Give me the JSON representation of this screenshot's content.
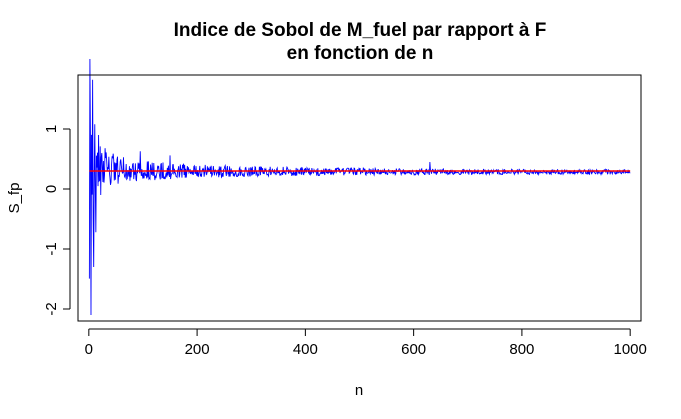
{
  "chart_data": {
    "type": "line",
    "title": [
      "Indice de Sobol de M_fuel par rapport à F",
      "en fonction de n"
    ],
    "xlabel": "n",
    "ylabel": "S_fp",
    "xlim": [
      -20,
      1020
    ],
    "ylim": [
      -2.2,
      1.9
    ],
    "x_ticks": [
      0,
      200,
      400,
      600,
      800,
      1000
    ],
    "y_ticks": [
      -2,
      -1,
      0,
      1
    ],
    "grid": false,
    "legend": "none",
    "series": [
      {
        "color": "#0000ff",
        "envelope": {
          "n": [
            1,
            3,
            5,
            7,
            8,
            10,
            15,
            20,
            30,
            50,
            75,
            100,
            150,
            200,
            300,
            400,
            500,
            650,
            800,
            1000
          ],
          "half_width": [
            2.4,
            2.0,
            1.6,
            1.5,
            1.0,
            0.75,
            0.6,
            0.45,
            0.34,
            0.26,
            0.2,
            0.17,
            0.14,
            0.11,
            0.085,
            0.07,
            0.06,
            0.05,
            0.045,
            0.04
          ]
        },
        "center": 0.28,
        "extremes": [
          {
            "x": 4,
            "y": -2.1
          },
          {
            "x": 7,
            "y": 1.82
          },
          {
            "x": 9,
            "y": -1.3
          },
          {
            "x": 11,
            "y": 1.08
          },
          {
            "x": 13,
            "y": -0.72
          },
          {
            "x": 18,
            "y": 0.9
          },
          {
            "x": 22,
            "y": -0.1
          },
          {
            "x": 30,
            "y": 0.68
          },
          {
            "x": 95,
            "y": 0.63
          },
          {
            "x": 150,
            "y": 0.56
          },
          {
            "x": 630,
            "y": 0.45
          }
        ]
      },
      {
        "color": "#ff0000",
        "x": [
          1,
          1000
        ],
        "values": [
          0.3,
          0.3
        ]
      }
    ]
  }
}
